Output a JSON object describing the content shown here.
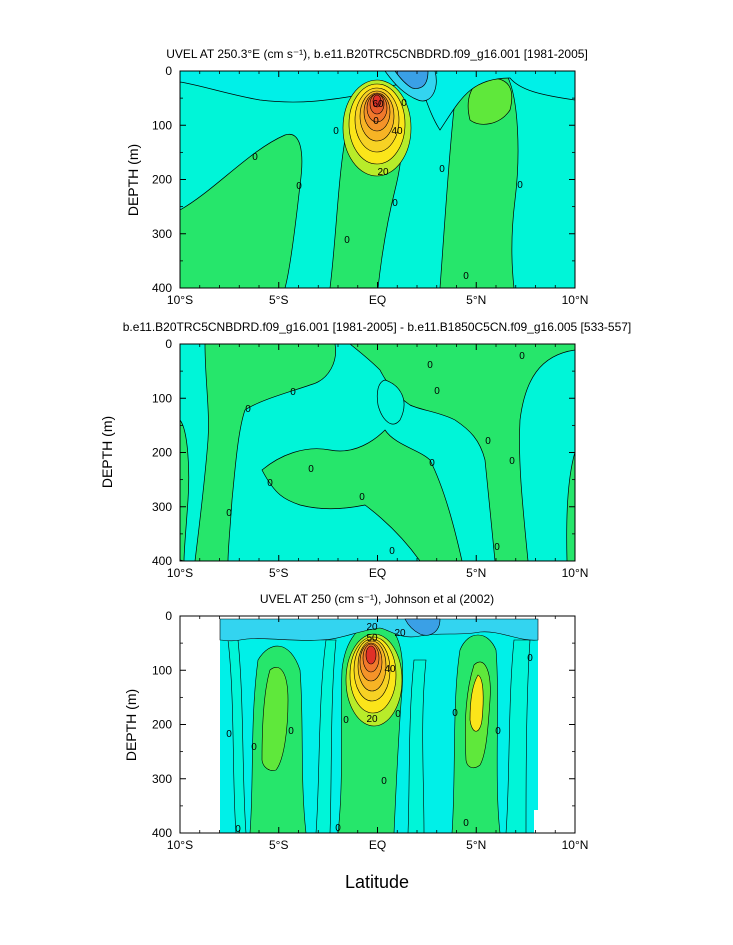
{
  "chart_data": [
    {
      "type": "heatmap",
      "title": "UVEL AT 250.3°E (cm s⁻¹), b.e11.B20TRC5CNBDRD.f09_g16.001 [1981-2005]",
      "ylabel": "DEPTH (m)",
      "xlim": [
        -10,
        10
      ],
      "ylim": [
        400,
        0
      ],
      "y_inverted": true,
      "x_ticks": [
        "10°S",
        "5°S",
        "EQ",
        "5°N",
        "10°N"
      ],
      "y_ticks": [
        "0",
        "100",
        "200",
        "300",
        "400"
      ],
      "contour_labels": [
        "60",
        "0",
        "40",
        "20",
        "0",
        "0",
        "0",
        "0",
        "0",
        "0",
        "0",
        "0",
        "0"
      ],
      "max_core": {
        "lat": 0.0,
        "depth": 90,
        "value": 80
      }
    },
    {
      "type": "heatmap",
      "title": "b.e11.B20TRC5CNBDRD.f09_g16.001 [1981-2005] - b.e11.B1850C5CN.f09_g16.005 [533-557]",
      "ylabel": "DEPTH (m)",
      "xlim": [
        -10,
        10
      ],
      "ylim": [
        400,
        0
      ],
      "y_inverted": true,
      "x_ticks": [
        "10°S",
        "5°S",
        "EQ",
        "5°N",
        "10°N"
      ],
      "y_ticks": [
        "0",
        "100",
        "200",
        "300",
        "400"
      ],
      "contour_labels": [
        "0",
        "0",
        "0",
        "0",
        "0",
        "0",
        "0",
        "0",
        "0",
        "0",
        "0",
        "0",
        "0",
        "0"
      ]
    },
    {
      "type": "heatmap",
      "title": "UVEL AT 250 (cm s⁻¹), Johnson et al (2002)",
      "ylabel": "DEPTH (m)",
      "xlabel": "Latitude",
      "xlim": [
        -10,
        10
      ],
      "ylim": [
        400,
        0
      ],
      "y_inverted": true,
      "x_ticks": [
        "10°S",
        "5°S",
        "EQ",
        "5°N",
        "10°N"
      ],
      "y_ticks": [
        "0",
        "100",
        "200",
        "300",
        "400"
      ],
      "data_extent_lat": [
        -8.0,
        8.2
      ],
      "contour_labels": [
        "20",
        "50",
        "20",
        "40",
        "20",
        "0",
        "0",
        "0",
        "0",
        "0",
        "0",
        "0",
        "0",
        "0",
        "0",
        "0",
        "0"
      ],
      "max_core": {
        "lat": -0.3,
        "depth": 70,
        "value": 70
      }
    }
  ],
  "palette": {
    "neg_strong": "#3aa0e6",
    "neg": "#33d4f0",
    "neg_weak": "#00f0e8",
    "zero": "#00f5d8",
    "pos_weak": "#26e66b",
    "pos": "#5fe83b",
    "pos_mid": "#b8ec2a",
    "pos_high": "#fbe51a",
    "pos_higher": "#f7b425",
    "pos_strong": "#f1782b",
    "pos_max": "#e03027"
  }
}
